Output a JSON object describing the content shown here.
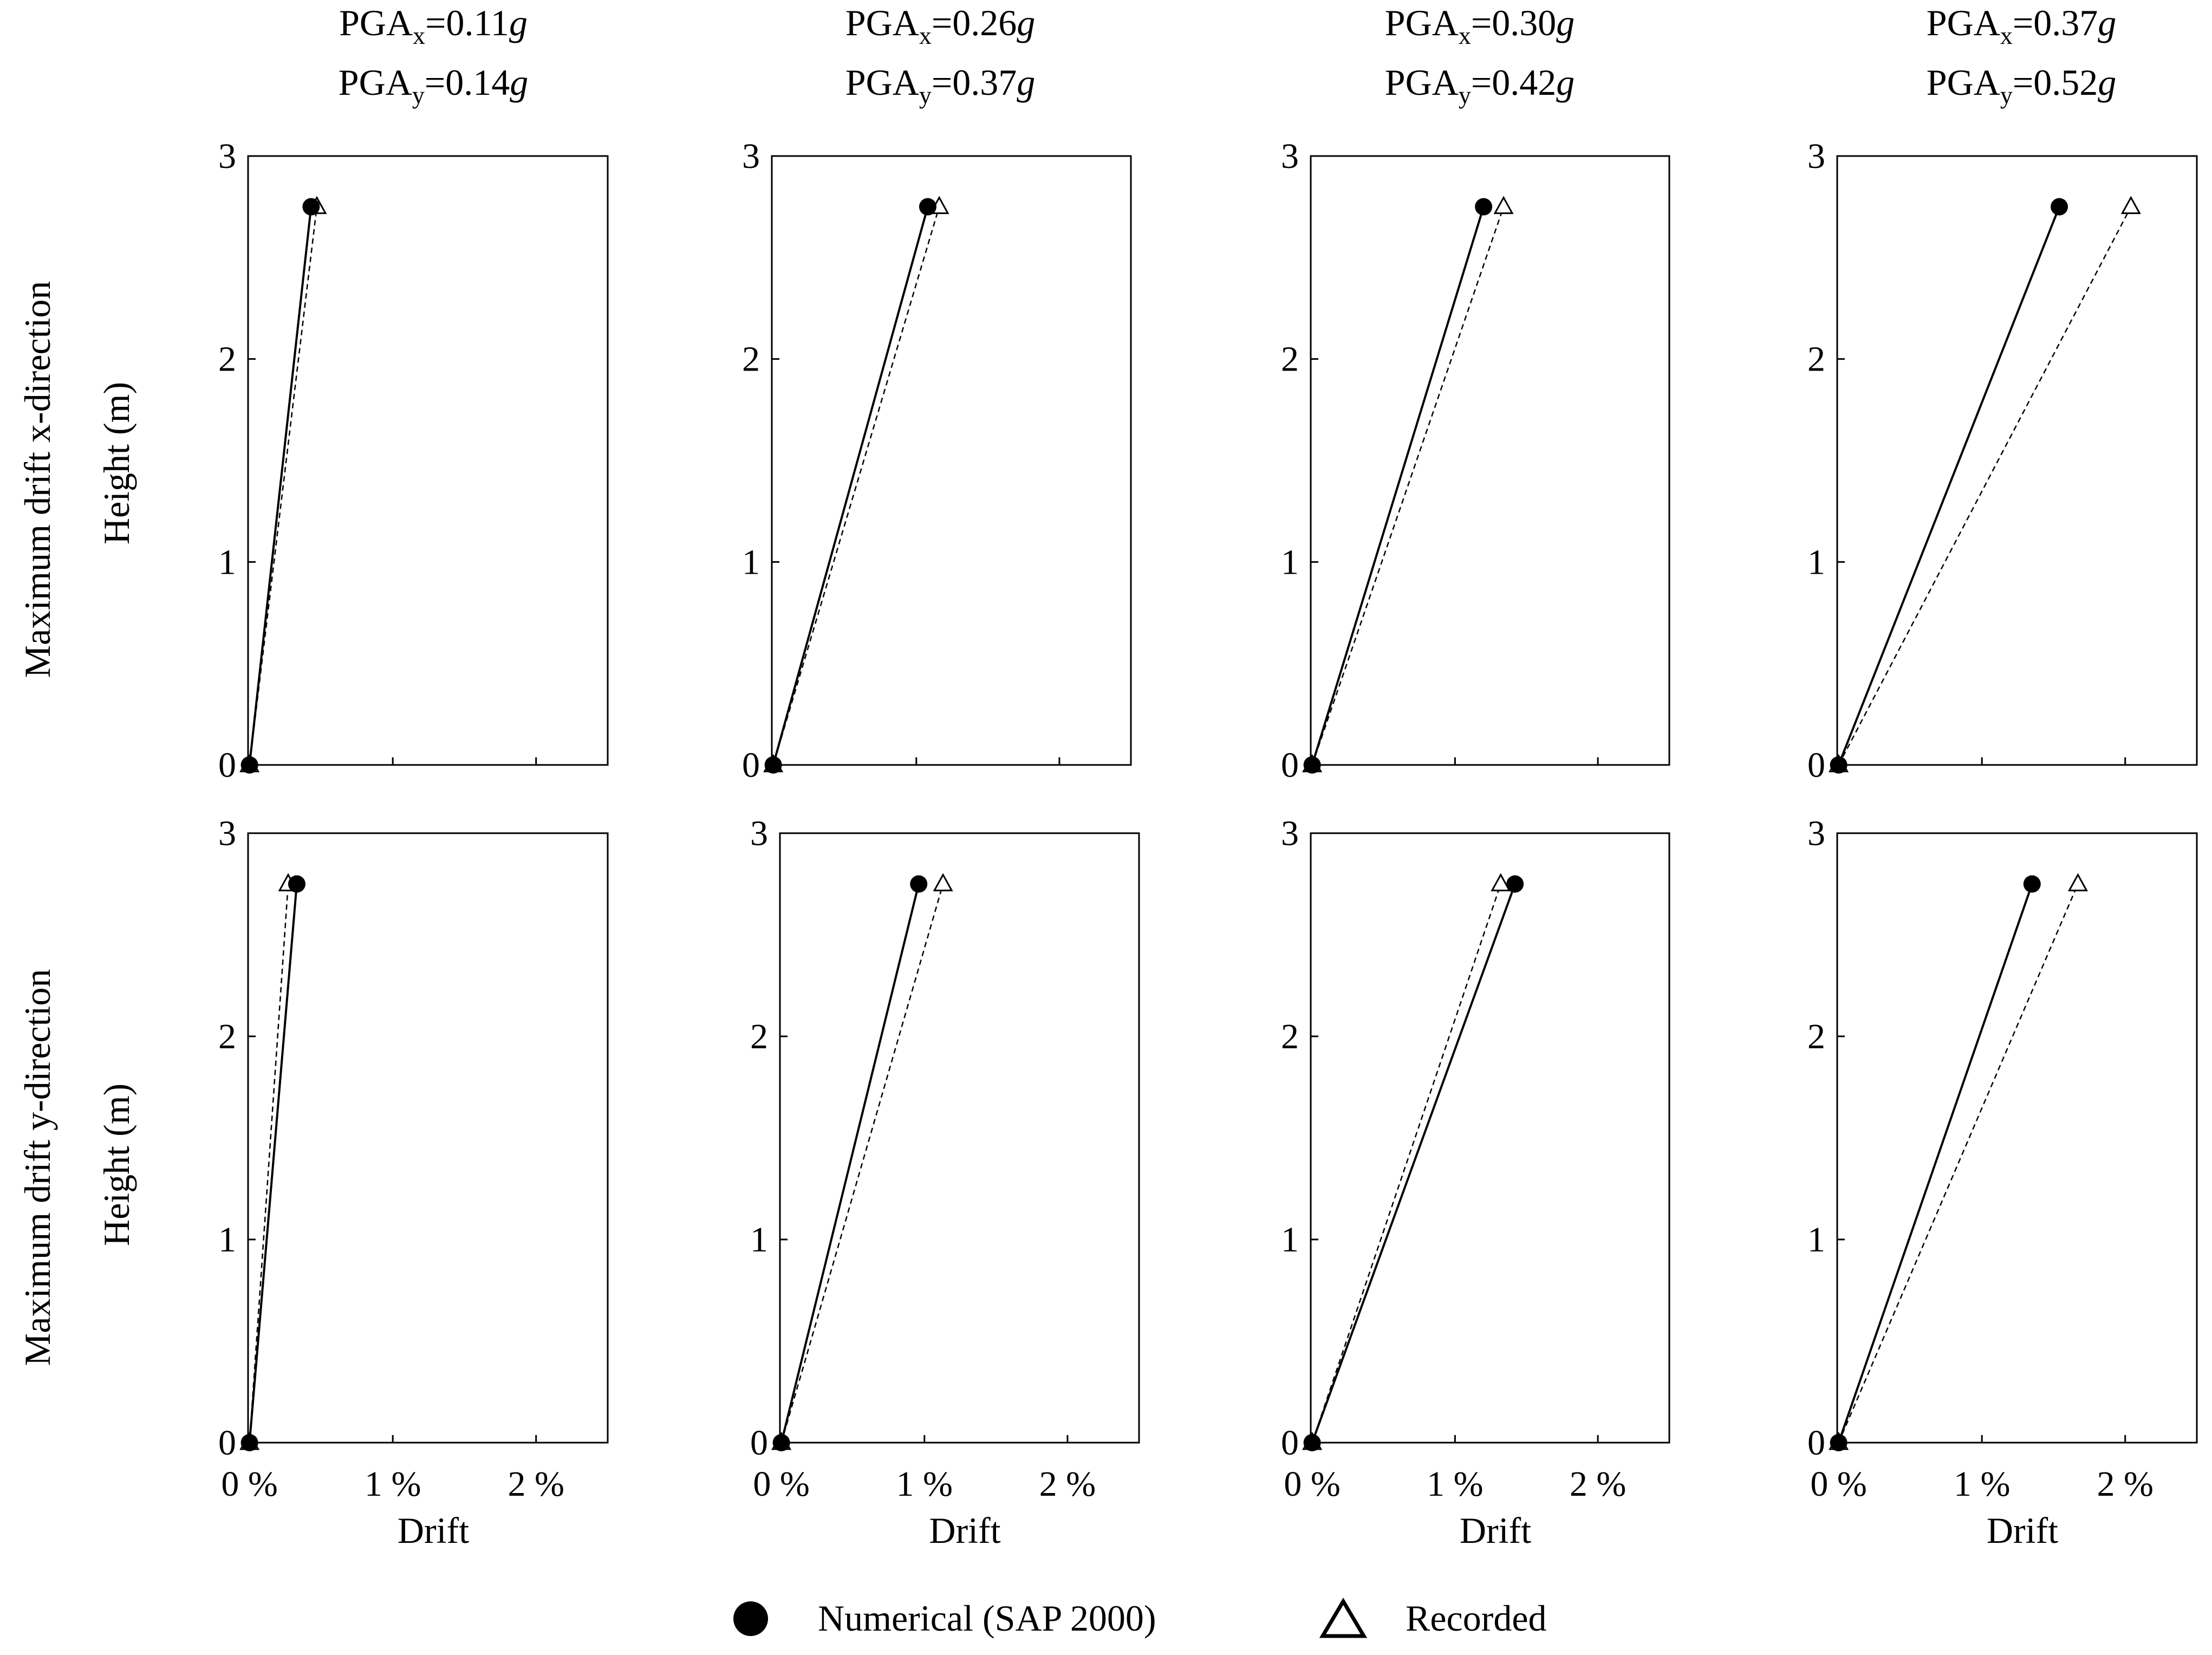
{
  "rows": [
    {
      "label": "Maximum drift x-direction",
      "height_label": "Height (m)"
    },
    {
      "label": "Maximum drift y-direction",
      "height_label": "Height (m)"
    }
  ],
  "columns": [
    {
      "pga_x": "0.11",
      "pga_y": "0.14"
    },
    {
      "pga_x": "0.26",
      "pga_y": "0.37"
    },
    {
      "pga_x": "0.30",
      "pga_y": "0.42"
    },
    {
      "pga_x": "0.37",
      "pga_y": "0.52"
    }
  ],
  "pga_prefix": "PGA",
  "pga_sub_x": "x",
  "pga_sub_y": "y",
  "pga_eq": "=",
  "pga_unit": "g",
  "xlabel": "Drift",
  "x_ticks": [
    0,
    1,
    2
  ],
  "x_tick_labels": [
    "0 %",
    "1 %",
    "2 %"
  ],
  "y_ticks": [
    0,
    1,
    2,
    3
  ],
  "y_tick_labels": [
    "0",
    "1",
    "2",
    "3"
  ],
  "legend": {
    "numerical": "Numerical (SAP 2000)",
    "recorded": "Recorded"
  },
  "chart_data": [
    {
      "type": "line",
      "row": 0,
      "col": 0,
      "xlim": [
        -0.01,
        2.5
      ],
      "ylim": [
        0,
        3
      ],
      "series": [
        {
          "name": "Numerical (SAP 2000)",
          "x": [
            0.0,
            0.43
          ],
          "y": [
            0,
            2.75
          ]
        },
        {
          "name": "Recorded",
          "x": [
            0.0,
            0.47
          ],
          "y": [
            0,
            2.75
          ]
        }
      ]
    },
    {
      "type": "line",
      "row": 0,
      "col": 1,
      "xlim": [
        -0.01,
        2.5
      ],
      "ylim": [
        0,
        3
      ],
      "series": [
        {
          "name": "Numerical (SAP 2000)",
          "x": [
            0.0,
            1.08
          ],
          "y": [
            0,
            2.75
          ]
        },
        {
          "name": "Recorded",
          "x": [
            0.0,
            1.16
          ],
          "y": [
            0,
            2.75
          ]
        }
      ]
    },
    {
      "type": "line",
      "row": 0,
      "col": 2,
      "xlim": [
        -0.01,
        2.5
      ],
      "ylim": [
        0,
        3
      ],
      "series": [
        {
          "name": "Numerical (SAP 2000)",
          "x": [
            0.0,
            1.2
          ],
          "y": [
            0,
            2.75
          ]
        },
        {
          "name": "Recorded",
          "x": [
            0.0,
            1.34
          ],
          "y": [
            0,
            2.75
          ]
        }
      ]
    },
    {
      "type": "line",
      "row": 0,
      "col": 3,
      "xlim": [
        -0.01,
        2.5
      ],
      "ylim": [
        0,
        3
      ],
      "series": [
        {
          "name": "Numerical (SAP 2000)",
          "x": [
            0.0,
            1.54
          ],
          "y": [
            0,
            2.75
          ]
        },
        {
          "name": "Recorded",
          "x": [
            0.0,
            2.04
          ],
          "y": [
            0,
            2.75
          ]
        }
      ]
    },
    {
      "type": "line",
      "row": 1,
      "col": 0,
      "xlim": [
        -0.01,
        2.5
      ],
      "ylim": [
        0,
        3
      ],
      "series": [
        {
          "name": "Numerical (SAP 2000)",
          "x": [
            0.0,
            0.33
          ],
          "y": [
            0,
            2.75
          ]
        },
        {
          "name": "Recorded",
          "x": [
            0.0,
            0.27
          ],
          "y": [
            0,
            2.75
          ]
        }
      ]
    },
    {
      "type": "line",
      "row": 1,
      "col": 1,
      "xlim": [
        -0.01,
        2.5
      ],
      "ylim": [
        0,
        3
      ],
      "series": [
        {
          "name": "Numerical (SAP 2000)",
          "x": [
            0.0,
            0.96
          ],
          "y": [
            0,
            2.75
          ]
        },
        {
          "name": "Recorded",
          "x": [
            0.0,
            1.13
          ],
          "y": [
            0,
            2.75
          ]
        }
      ]
    },
    {
      "type": "line",
      "row": 1,
      "col": 2,
      "xlim": [
        -0.01,
        2.5
      ],
      "ylim": [
        0,
        3
      ],
      "series": [
        {
          "name": "Numerical (SAP 2000)",
          "x": [
            0.0,
            1.42
          ],
          "y": [
            0,
            2.75
          ]
        },
        {
          "name": "Recorded",
          "x": [
            0.0,
            1.32
          ],
          "y": [
            0,
            2.75
          ]
        }
      ]
    },
    {
      "type": "line",
      "row": 1,
      "col": 3,
      "xlim": [
        -0.01,
        2.5
      ],
      "ylim": [
        0,
        3
      ],
      "series": [
        {
          "name": "Numerical (SAP 2000)",
          "x": [
            0.0,
            1.35
          ],
          "y": [
            0,
            2.75
          ]
        },
        {
          "name": "Recorded",
          "x": [
            0.0,
            1.67
          ],
          "y": [
            0,
            2.75
          ]
        }
      ]
    }
  ]
}
